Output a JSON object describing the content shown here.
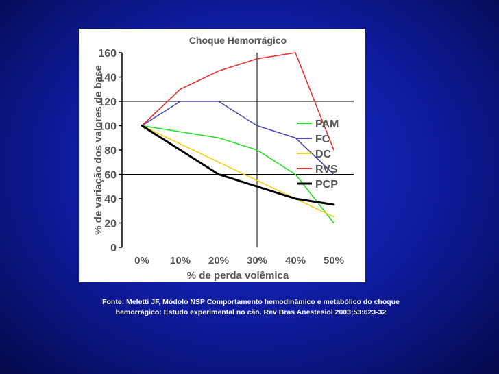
{
  "chart_data": {
    "type": "line",
    "title": "Choque Hemorrágico",
    "xlabel": "% de perda volêmica",
    "ylabel": "% de variação dos valores de base",
    "categories": [
      "0%",
      "10%",
      "20%",
      "30%",
      "40%",
      "50%"
    ],
    "x": [
      0,
      10,
      20,
      30,
      40,
      50
    ],
    "ylim": [
      0,
      160
    ],
    "yticks": [
      0,
      20,
      40,
      60,
      80,
      100,
      120,
      140,
      160
    ],
    "grid_y": [
      60,
      120
    ],
    "grid_x": [
      30
    ],
    "legend_position": "right",
    "series": [
      {
        "name": "PAM",
        "color": "#22e222",
        "values": [
          100,
          95,
          90,
          80,
          60,
          20
        ]
      },
      {
        "name": "FC",
        "color": "#4a4ab8",
        "values": [
          100,
          120,
          120,
          100,
          90,
          60
        ]
      },
      {
        "name": "DC",
        "color": "#f5d020",
        "values": [
          100,
          85,
          70,
          55,
          40,
          25
        ]
      },
      {
        "name": "RVS",
        "color": "#e03030",
        "values": [
          100,
          130,
          145,
          155,
          160,
          80
        ]
      },
      {
        "name": "PCP",
        "color": "#000000",
        "values": [
          100,
          80,
          60,
          50,
          40,
          35
        ]
      }
    ]
  },
  "caption": {
    "line1": "Fonte: Meletti JF, Módolo NSP Comportamento hemodinâmico e metabólico do choque",
    "line2": "hemorrágico: Estudo experimental no cão. Rev Bras Anestesiol 2003;53:623-32"
  }
}
